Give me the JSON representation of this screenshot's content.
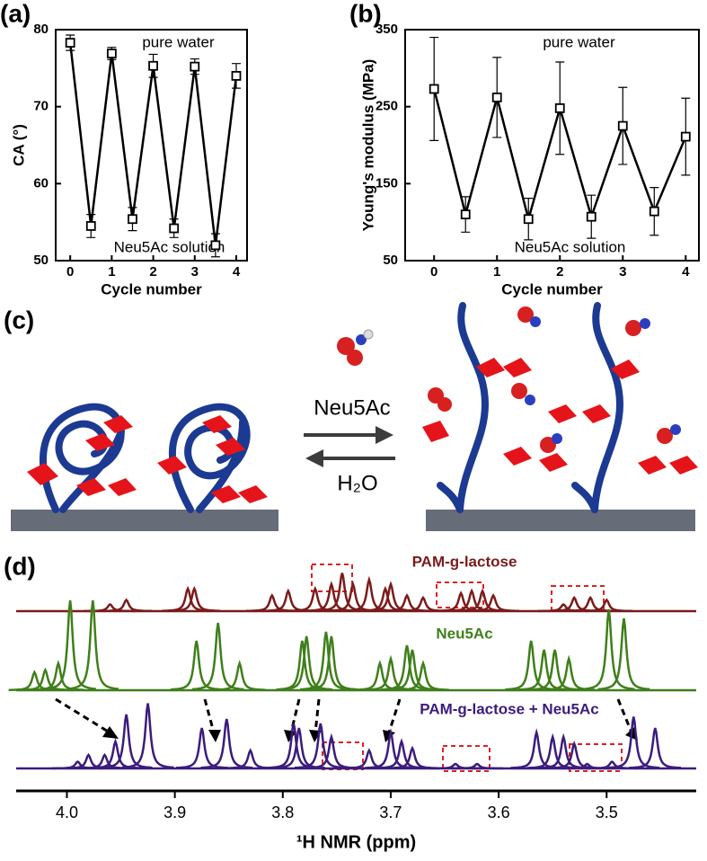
{
  "chart_data": [
    {
      "type": "line",
      "label": "(a)",
      "xlabel": "Cycle number",
      "ylabel": "CA (°)",
      "annotations": [
        "pure water",
        "Neu5Ac solution"
      ],
      "x": [
        0,
        0.5,
        1,
        1.5,
        2,
        2.5,
        3,
        3.5,
        4
      ],
      "values": [
        78.3,
        54.5,
        76.9,
        55.4,
        75.3,
        54.2,
        75.2,
        52.0,
        74.0
      ],
      "errors": [
        1.0,
        1.5,
        0.8,
        1.5,
        1.5,
        1.2,
        1.0,
        1.5,
        1.6
      ],
      "color": "#000000",
      "xlim": [
        -0.35,
        4.26
      ],
      "ylim": [
        50,
        80
      ],
      "xticks": [
        0,
        1,
        2,
        3,
        4
      ],
      "yticks": [
        50,
        60,
        70,
        80
      ]
    },
    {
      "type": "line",
      "label": "(b)",
      "xlabel": "Cycle number",
      "ylabel": "Young's modulus (MPa)",
      "annotations": [
        "pure water",
        "Neu5Ac solution"
      ],
      "x": [
        0,
        0.5,
        1,
        1.5,
        2,
        2.5,
        3,
        3.5,
        4
      ],
      "values": [
        273,
        110,
        262,
        104,
        248,
        107,
        225,
        114,
        211
      ],
      "errors": [
        67,
        23,
        52,
        27,
        60,
        28,
        50,
        31,
        50
      ],
      "color": "#000000",
      "xlim": [
        -0.46,
        4.21
      ],
      "ylim": [
        50,
        350
      ],
      "xticks": [
        0,
        1,
        2,
        3,
        4
      ],
      "yticks": [
        50,
        150,
        250,
        350
      ]
    },
    {
      "type": "spectra",
      "label": "(d)",
      "xlabel": "¹H NMR (ppm)",
      "xlim": [
        4.047,
        3.417
      ],
      "xticks": [
        {
          "value": 4.0,
          "label": "4.0"
        },
        3.9,
        3.8,
        3.7,
        3.6,
        3.5
      ],
      "series": [
        {
          "name": "PAM-g-lactose",
          "color": "#7a1b1b",
          "x": [
            3.96,
            3.945,
            3.888,
            3.882,
            3.81,
            3.795,
            3.77,
            3.755,
            3.745,
            3.735,
            3.72,
            3.705,
            3.7,
            3.685,
            3.67,
            3.635,
            3.625,
            3.615,
            3.605,
            3.54,
            3.53,
            3.515,
            3.5
          ],
          "values": [
            0.15,
            0.25,
            0.5,
            0.5,
            0.35,
            0.45,
            0.5,
            0.6,
            0.85,
            0.6,
            0.7,
            0.5,
            0.6,
            0.35,
            0.3,
            0.4,
            0.45,
            0.45,
            0.35,
            0.15,
            0.3,
            0.3,
            0.25
          ]
        },
        {
          "name": "Neu5Ac",
          "color": "#3f7f1a",
          "x": [
            4.03,
            4.02,
            4.008,
            3.997,
            3.976,
            3.88,
            3.86,
            3.84,
            3.782,
            3.778,
            3.76,
            3.755,
            3.71,
            3.7,
            3.685,
            3.68,
            3.67,
            3.57,
            3.558,
            3.548,
            3.535,
            3.498,
            3.484
          ],
          "values": [
            0.4,
            0.45,
            0.6,
            2.0,
            2.0,
            1.1,
            1.5,
            0.6,
            1.1,
            1.2,
            1.3,
            1.2,
            0.6,
            0.7,
            1.0,
            0.9,
            0.6,
            1.1,
            0.9,
            0.9,
            0.7,
            1.8,
            1.6
          ]
        },
        {
          "name": "PAM-g-lactose + Neu5Ac",
          "color": "#3b1c7c",
          "x": [
            3.99,
            3.98,
            3.965,
            3.955,
            3.945,
            3.925,
            3.875,
            3.852,
            3.83,
            3.79,
            3.785,
            3.765,
            3.755,
            3.72,
            3.7,
            3.69,
            3.68,
            3.64,
            3.62,
            3.565,
            3.55,
            3.54,
            3.53,
            3.518,
            3.495,
            3.475,
            3.455
          ],
          "values": [
            0.15,
            0.3,
            0.3,
            0.6,
            1.2,
            1.45,
            0.9,
            1.1,
            0.4,
            1.0,
            0.9,
            1.0,
            0.7,
            0.4,
            0.8,
            0.6,
            0.45,
            0.1,
            0.1,
            0.8,
            0.7,
            0.7,
            0.55,
            0.1,
            0.15,
            1.15,
            0.9
          ]
        }
      ]
    }
  ],
  "diagram": {
    "label": "(c)",
    "forward": "Neu5Ac",
    "reverse": "H₂O"
  }
}
